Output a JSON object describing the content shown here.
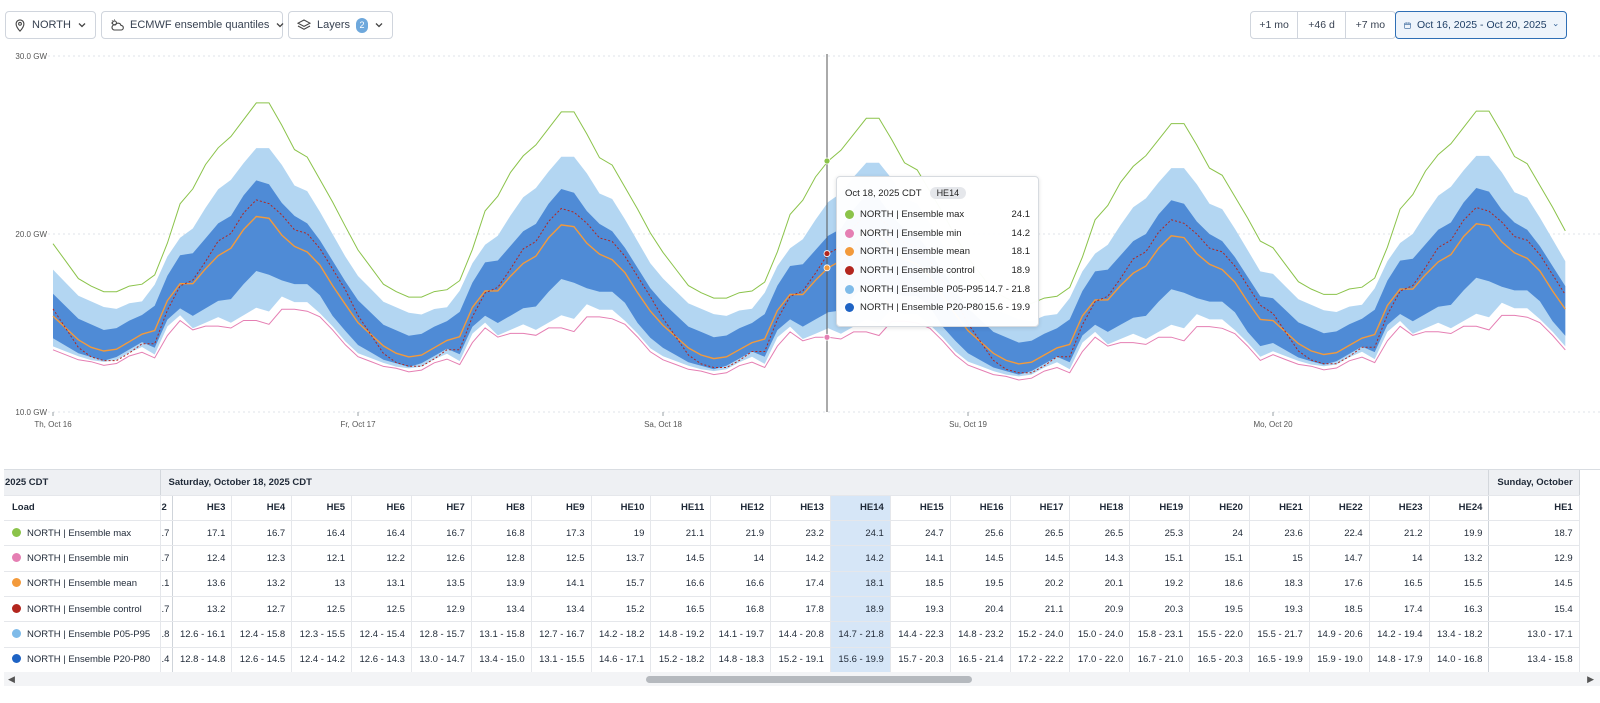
{
  "toolbar": {
    "region": "NORTH",
    "model": "ECMWF ensemble quantiles",
    "layers_label": "Layers",
    "layers_count": "2",
    "ranges": [
      "+1 mo",
      "+46 d",
      "+7 mo"
    ],
    "date_range": "Oct 16, 2025 - Oct 20, 2025"
  },
  "chart_data": {
    "type": "area",
    "y_ticks": [
      "30.0 GW",
      "20.0 GW",
      "10.0 GW"
    ],
    "ylim": [
      10,
      30
    ],
    "x_ticks": [
      "Th, Oct 16",
      "Fr, Oct 17",
      "Sa, Oct 18",
      "Su, Oct 19",
      "Mo, Oct 20"
    ],
    "grid": true,
    "series": [
      {
        "name": "NORTH | Ensemble max",
        "color": "#8bc34a"
      },
      {
        "name": "NORTH | Ensemble min",
        "color": "#e57fb3"
      },
      {
        "name": "NORTH | Ensemble mean",
        "color": "#f39a3b"
      },
      {
        "name": "NORTH | Ensemble control",
        "color": "#b3261e"
      },
      {
        "name": "NORTH | Ensemble P05-P95",
        "color": "#7fbbe9"
      },
      {
        "name": "NORTH | Ensemble P20-P80",
        "color": "#1e63c4"
      }
    ],
    "hours": [
      "HE3",
      "HE4",
      "HE5",
      "HE6",
      "HE7",
      "HE8",
      "HE9",
      "HE10",
      "HE11",
      "HE12",
      "HE13",
      "HE14",
      "HE15",
      "HE16",
      "HE17",
      "HE18",
      "HE19",
      "HE20",
      "HE21",
      "HE22",
      "HE23",
      "HE24"
    ],
    "oct18_values": {
      "max": [
        17.1,
        16.7,
        16.4,
        16.4,
        16.7,
        16.8,
        17.3,
        19.0,
        21.1,
        21.9,
        23.2,
        24.1,
        24.7,
        25.6,
        26.5,
        26.5,
        25.3,
        24.0,
        23.6,
        22.4,
        21.2,
        19.9
      ],
      "min": [
        12.4,
        12.3,
        12.1,
        12.2,
        12.6,
        12.8,
        12.5,
        13.7,
        14.5,
        14.0,
        14.2,
        14.2,
        14.1,
        14.5,
        14.5,
        14.3,
        15.1,
        15.1,
        15.0,
        14.7,
        14.0,
        13.2
      ],
      "mean": [
        13.6,
        13.2,
        13.0,
        13.1,
        13.5,
        13.9,
        14.1,
        15.7,
        16.6,
        16.6,
        17.4,
        18.1,
        18.5,
        19.5,
        20.2,
        20.1,
        19.2,
        18.6,
        18.3,
        17.6,
        16.5,
        15.5
      ],
      "control": [
        13.2,
        12.7,
        12.5,
        12.5,
        12.9,
        13.4,
        13.4,
        15.2,
        16.5,
        16.8,
        17.8,
        18.9,
        19.3,
        20.4,
        21.1,
        20.9,
        20.3,
        19.5,
        19.3,
        18.5,
        17.4,
        16.3
      ],
      "p05_p95": [
        "12.6 - 16.1",
        "12.4 - 15.8",
        "12.3 - 15.5",
        "12.4 - 15.4",
        "12.8 - 15.7",
        "13.1 - 15.8",
        "12.7 - 16.7",
        "14.2 - 18.2",
        "14.8 - 19.2",
        "14.1 - 19.7",
        "14.4 - 20.8",
        "14.7 - 21.8",
        "14.4 - 22.3",
        "14.8 - 23.2",
        "15.2 - 24.0",
        "15.0 - 24.0",
        "15.8 - 23.1",
        "15.5 - 22.0",
        "15.5 - 21.7",
        "14.9 - 20.6",
        "14.2 - 19.4",
        "13.4 - 18.2"
      ],
      "p20_p80": [
        "12.8 - 14.8",
        "12.6 - 14.5",
        "12.4 - 14.2",
        "12.6 - 14.3",
        "13.0 - 14.7",
        "13.4 - 15.0",
        "13.1 - 15.5",
        "14.6 - 17.1",
        "15.2 - 18.2",
        "14.8 - 18.3",
        "15.2 - 19.1",
        "15.6 - 19.9",
        "15.7 - 20.3",
        "16.5 - 21.4",
        "17.2 - 22.2",
        "17.0 - 22.0",
        "16.7 - 21.0",
        "16.5 - 20.3",
        "16.5 - 19.9",
        "15.9 - 19.0",
        "14.8 - 17.9",
        "14.0 - 16.8"
      ]
    }
  },
  "tooltip": {
    "date": "Oct 18, 2025 CDT",
    "he": "HE14",
    "rows": [
      {
        "label": "NORTH | Ensemble max",
        "value": "24.1",
        "color": "#8bc34a"
      },
      {
        "label": "NORTH | Ensemble min",
        "value": "14.2",
        "color": "#e57fb3"
      },
      {
        "label": "NORTH | Ensemble mean",
        "value": "18.1",
        "color": "#f39a3b"
      },
      {
        "label": "NORTH | Ensemble control",
        "value": "18.9",
        "color": "#b3261e"
      },
      {
        "label": "NORTH | Ensemble P05-P95",
        "value": "14.7 - 21.8",
        "color": "#7fbbe9"
      },
      {
        "label": "NORTH | Ensemble P20-P80",
        "value": "15.6 - 19.9",
        "color": "#1e63c4"
      }
    ]
  },
  "table": {
    "date_left_partial": "2025 CDT",
    "date_main": "Saturday, October 18, 2025 CDT",
    "date_right_partial": "Sunday, October",
    "load_header": "Load",
    "left_partial_header": "2",
    "right_header": "HE1",
    "rows": [
      {
        "label": "NORTH | Ensemble max",
        "color": "#8bc34a",
        "left": ".7",
        "right": "18.7"
      },
      {
        "label": "NORTH | Ensemble min",
        "color": "#e57fb3",
        "left": ".7",
        "right": "12.9"
      },
      {
        "label": "NORTH | Ensemble mean",
        "color": "#f39a3b",
        "left": ".1",
        "right": "14.5"
      },
      {
        "label": "NORTH | Ensemble control",
        "color": "#b3261e",
        "left": ".7",
        "right": "15.4"
      },
      {
        "label": "NORTH | Ensemble P05-P95",
        "color": "#7fbbe9",
        "left": ".8",
        "right": "13.0 - 17.1"
      },
      {
        "label": "NORTH | Ensemble P20-P80",
        "color": "#1e63c4",
        "left": ".4",
        "right": "13.4 - 15.8"
      }
    ]
  }
}
